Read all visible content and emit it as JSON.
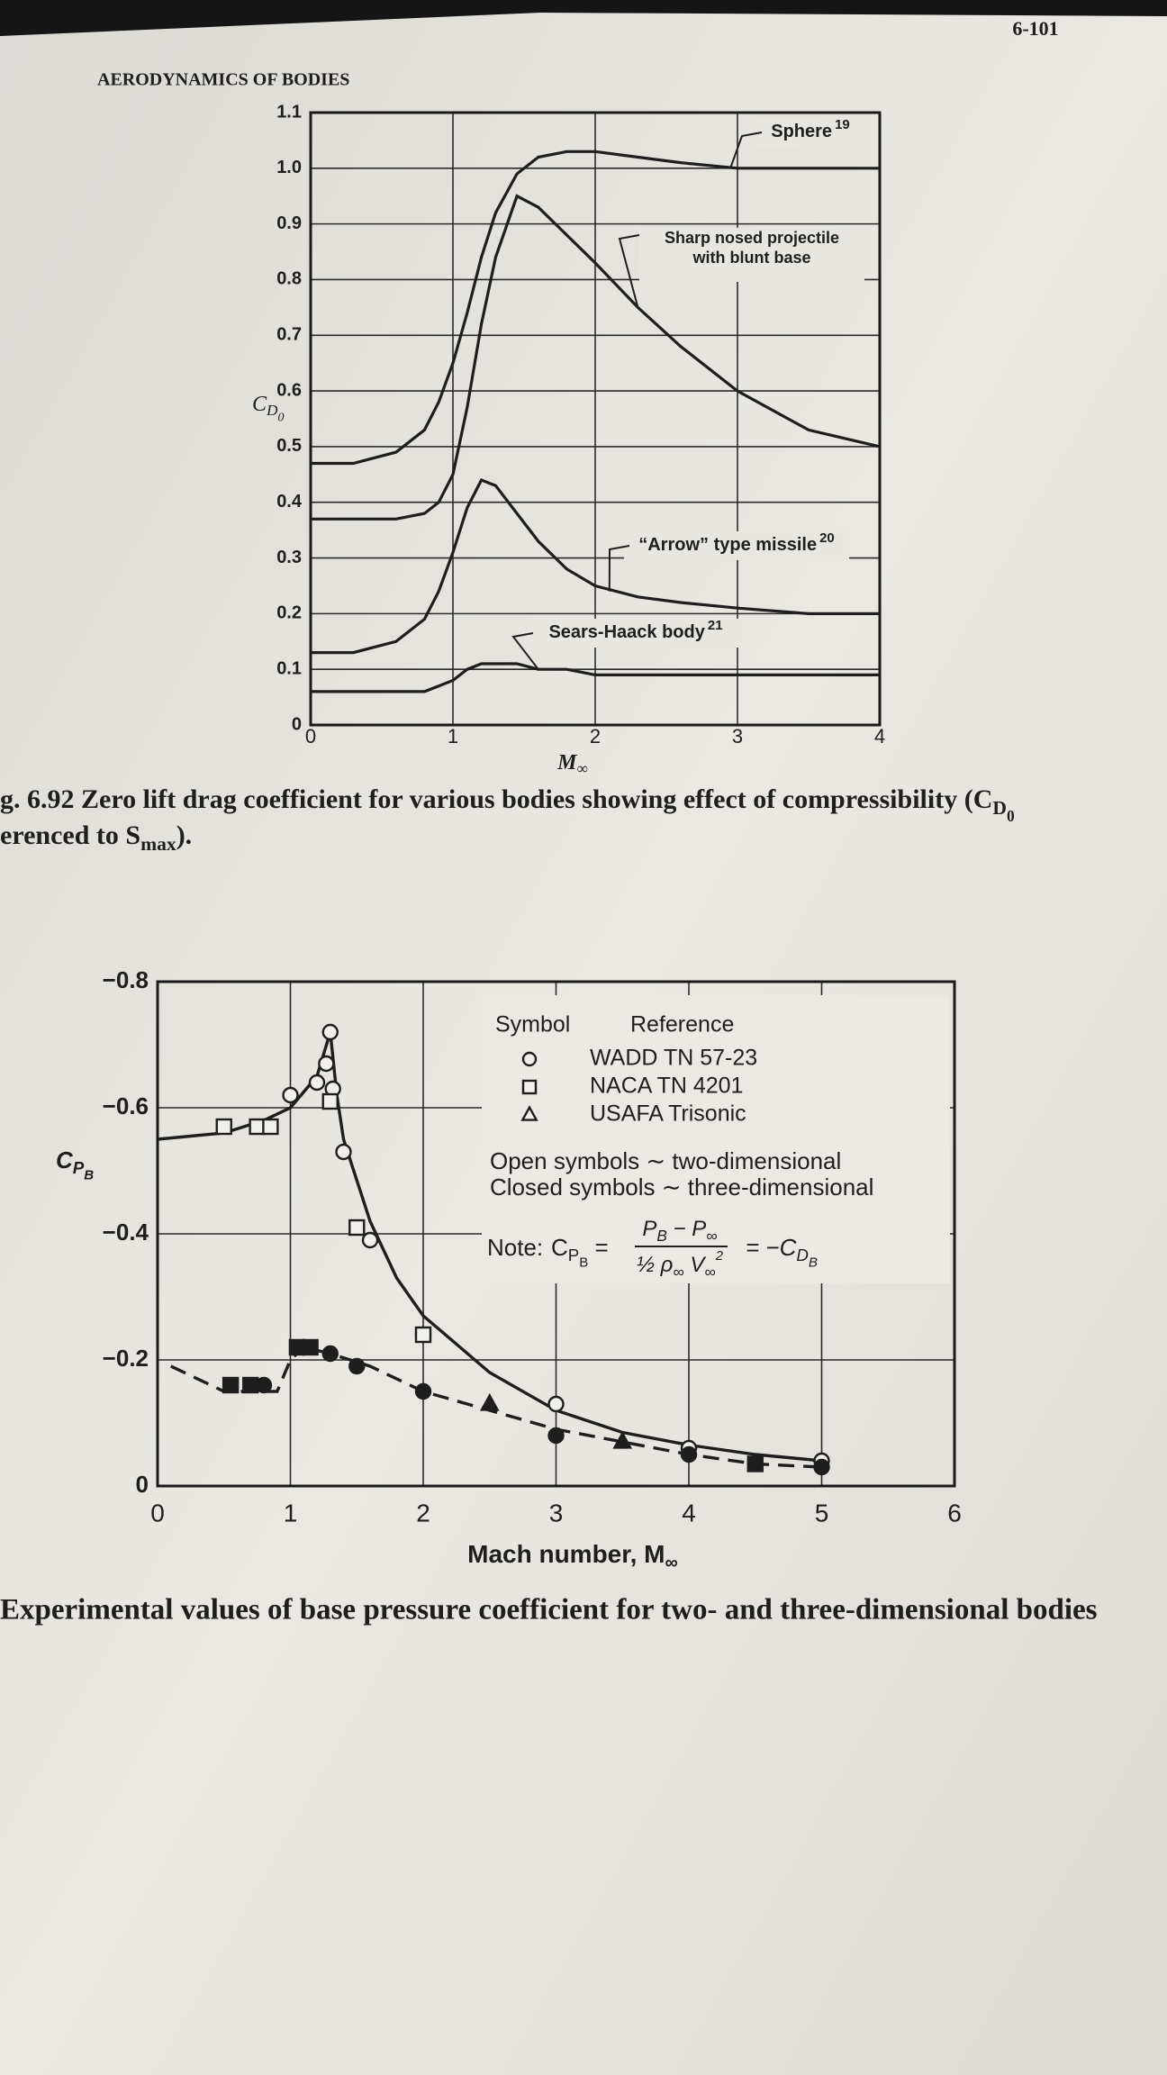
{
  "header": {
    "page_number": "6-101",
    "running_title": "AERODYNAMICS OF BODIES"
  },
  "chart_data": [
    {
      "type": "line",
      "y_label": [
        "C",
        "D",
        "0"
      ],
      "x_label": [
        "M",
        "∞"
      ],
      "x": [
        0,
        0.3,
        0.6,
        0.8,
        0.9,
        1.0,
        1.1,
        1.2,
        1.3,
        1.45,
        1.6,
        1.8,
        2.0,
        2.3,
        2.6,
        3.0,
        3.5,
        4.0
      ],
      "series": [
        {
          "name": "Sphere",
          "ref": "19",
          "color": "#1e1e1e",
          "values": [
            0.47,
            0.47,
            0.49,
            0.53,
            0.58,
            0.65,
            0.74,
            0.84,
            0.92,
            0.99,
            1.02,
            1.03,
            1.03,
            1.02,
            1.01,
            1.0,
            1.0,
            1.0
          ]
        },
        {
          "name": "Sharp nosed projectile with blunt base",
          "color": "#1e1e1e",
          "values": [
            0.37,
            0.37,
            0.37,
            0.38,
            0.4,
            0.45,
            0.57,
            0.72,
            0.84,
            0.95,
            0.93,
            0.88,
            0.83,
            0.75,
            0.68,
            0.6,
            0.53,
            0.5
          ]
        },
        {
          "name": "“Arrow” type missile",
          "ref": "20",
          "color": "#1e1e1e",
          "values": [
            0.13,
            0.13,
            0.15,
            0.19,
            0.24,
            0.31,
            0.39,
            0.44,
            0.43,
            0.38,
            0.33,
            0.28,
            0.25,
            0.23,
            0.22,
            0.21,
            0.2,
            0.2
          ]
        },
        {
          "name": "Sears-Haack body",
          "ref": "21",
          "color": "#1e1e1e",
          "values": [
            0.06,
            0.06,
            0.06,
            0.06,
            0.07,
            0.08,
            0.1,
            0.11,
            0.11,
            0.11,
            0.1,
            0.1,
            0.09,
            0.09,
            0.09,
            0.09,
            0.09,
            0.09
          ]
        }
      ],
      "xlim": [
        0,
        4
      ],
      "xticks": [
        0,
        1,
        2,
        3,
        4
      ],
      "ylim": [
        0,
        1.1
      ],
      "yticks": [
        0,
        0.1,
        0.2,
        0.3,
        0.4,
        0.5,
        0.6,
        0.7,
        0.8,
        0.9,
        {
          "value": 1,
          "label": "1.0"
        },
        1.1
      ],
      "grid": true,
      "caption": [
        [
          "g. 6.92 Zero lift drag coefficient for various bodies showing effect of compressibility (C",
          "D",
          "0"
        ],
        [
          "erenced to S",
          "max",
          ")."
        ]
      ]
    },
    {
      "type": "scatter",
      "y_label": [
        "C",
        "P",
        "B"
      ],
      "x_label": [
        "Mach number, M",
        "∞"
      ],
      "symbol_header": "Symbol",
      "reference_header": "Reference",
      "references": [
        {
          "name": "WADD TN 57-23",
          "marker": "circle"
        },
        {
          "name": "NACA TN 4201",
          "marker": "square"
        },
        {
          "name": "USAFA Trisonic",
          "marker": "triangle"
        }
      ],
      "open_note": "Open symbols ∼ two-dimensional",
      "closed_note": "Closed symbols ∼ three-dimensional",
      "note": {
        "label": "Note:",
        "lhs": [
          "C",
          "P",
          "B",
          " ="
        ],
        "numerator": [
          "P",
          "B",
          " − P",
          "∞"
        ],
        "denominator": [
          "½ ρ",
          "∞",
          " V",
          "∞",
          "2"
        ],
        "rhs": [
          "= −C",
          "D",
          "B"
        ]
      },
      "series": [
        {
          "reference": 0,
          "filled": false,
          "x": [
            1.0,
            1.2,
            1.27,
            1.3,
            1.32,
            1.4,
            1.6,
            2.0,
            3.0,
            4.0,
            5.0
          ],
          "values": [
            -0.62,
            -0.64,
            -0.67,
            -0.72,
            -0.63,
            -0.53,
            -0.39,
            -0.24,
            -0.13,
            -0.06,
            -0.04
          ]
        },
        {
          "reference": 1,
          "filled": false,
          "x": [
            0.5,
            0.75,
            0.85,
            1.3,
            1.5,
            2.0
          ],
          "values": [
            -0.57,
            -0.57,
            -0.57,
            -0.61,
            -0.41,
            -0.24
          ]
        },
        {
          "reference": 0,
          "filled": true,
          "x": [
            0.8,
            1.1,
            1.3,
            1.5,
            2.0,
            3.0,
            4.0,
            5.0
          ],
          "values": [
            -0.16,
            -0.22,
            -0.21,
            -0.19,
            -0.15,
            -0.08,
            -0.05,
            -0.03
          ]
        },
        {
          "reference": 1,
          "filled": true,
          "x": [
            0.55,
            0.7,
            1.05,
            1.15,
            4.5
          ],
          "values": [
            -0.16,
            -0.16,
            -0.22,
            -0.22,
            -0.035
          ]
        },
        {
          "reference": 2,
          "filled": true,
          "x": [
            2.5,
            3.5
          ],
          "values": [
            -0.13,
            -0.07
          ]
        }
      ],
      "curves": [
        {
          "style": "solid",
          "x": [
            0,
            0.5,
            0.8,
            1.0,
            1.2,
            1.3,
            1.35,
            1.4,
            1.6,
            1.8,
            2.0,
            2.5,
            3.0,
            3.5,
            4.0,
            4.5,
            5.0
          ],
          "values": [
            -0.55,
            -0.56,
            -0.58,
            -0.6,
            -0.65,
            -0.72,
            -0.62,
            -0.55,
            -0.42,
            -0.33,
            -0.27,
            -0.18,
            -0.12,
            -0.085,
            -0.065,
            -0.05,
            -0.04
          ]
        },
        {
          "style": "dashed",
          "x": [
            0.1,
            0.5,
            0.9,
            1.0,
            1.1,
            1.3,
            1.6,
            2.0,
            2.5,
            3.0,
            3.5,
            4.0,
            4.5,
            5.0
          ],
          "values": [
            -0.19,
            -0.15,
            -0.15,
            -0.2,
            -0.22,
            -0.21,
            -0.19,
            -0.15,
            -0.12,
            -0.09,
            -0.07,
            -0.05,
            -0.035,
            -0.03
          ]
        }
      ],
      "color": "#1e1e1e",
      "xlim": [
        0,
        6
      ],
      "xticks": [
        0,
        1,
        2,
        3,
        4,
        5,
        6
      ],
      "ylim": [
        0,
        -0.8
      ],
      "yticks": [
        0,
        {
          "value": -0.2,
          "label": "−0.2"
        },
        {
          "value": -0.4,
          "label": "−0.4"
        },
        {
          "value": -0.6,
          "label": "−0.6"
        },
        {
          "value": -0.8,
          "label": "−0.8"
        }
      ],
      "grid": true,
      "caption": "Experimental values of base pressure coefficient for two- and three-dimensional bodies"
    }
  ]
}
